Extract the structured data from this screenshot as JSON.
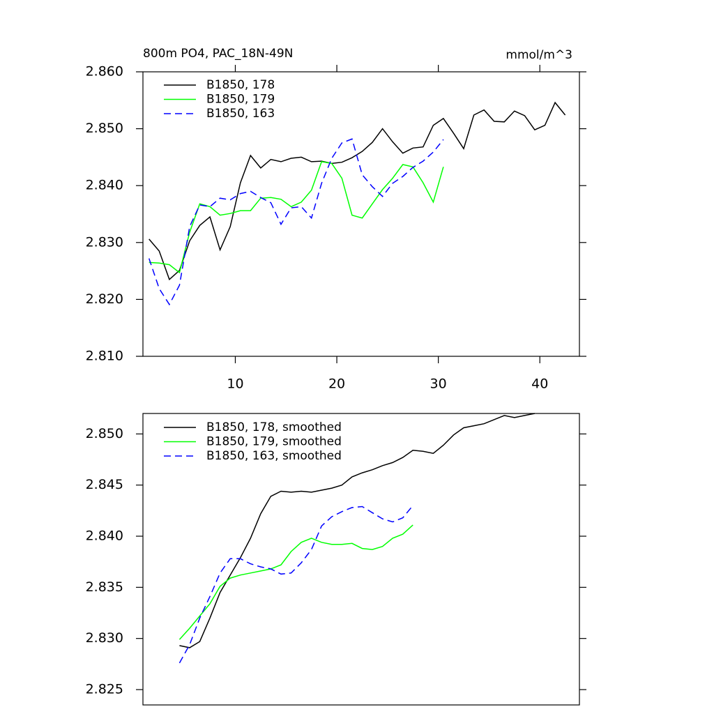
{
  "chart_data": [
    {
      "type": "line",
      "title": "800m PO4, PAC_18N-49N",
      "units": "mmol/m^3",
      "x": [
        1.5,
        2.5,
        3.5,
        4.5,
        5.5,
        6.5,
        7.5,
        8.5,
        9.5,
        10.5,
        11.5,
        12.5,
        13.5,
        14.5,
        15.5,
        16.5,
        17.5,
        18.5,
        19.5,
        20.5,
        21.5,
        22.5,
        23.5,
        24.5,
        25.5,
        26.5,
        27.5,
        28.5,
        29.5,
        30.5,
        31.5,
        32.5,
        33.5,
        34.5,
        35.5,
        36.5,
        37.5,
        38.5,
        39.5,
        40.5,
        41.5,
        42.5
      ],
      "series": [
        {
          "name": "B1850, 178",
          "color": "#000000",
          "line_style": "solid",
          "values": [
            2.8306,
            2.8285,
            2.8235,
            2.8251,
            2.8303,
            2.833,
            2.8345,
            2.8287,
            2.8328,
            2.8405,
            2.8453,
            2.8431,
            2.8446,
            2.8442,
            2.8448,
            2.845,
            2.8442,
            2.8443,
            2.8439,
            2.8441,
            2.8449,
            2.846,
            2.8476,
            2.85,
            2.8477,
            2.8457,
            2.8466,
            2.8468,
            2.8506,
            2.8518,
            2.8492,
            2.8465,
            2.8524,
            2.8533,
            2.8513,
            2.8512,
            2.8531,
            2.8523,
            2.8498,
            2.8506,
            2.8546,
            2.8524
          ]
        },
        {
          "name": "B1850, 179",
          "color": "#00ff00",
          "line_style": "solid",
          "values": [
            2.8265,
            2.8264,
            2.8261,
            2.8247,
            2.8318,
            2.8368,
            2.8363,
            2.8348,
            2.8351,
            2.8356,
            2.8356,
            2.8378,
            2.8379,
            2.8376,
            2.8363,
            2.8371,
            2.8392,
            2.8442,
            2.8439,
            2.8413,
            2.8348,
            2.8343,
            2.8368,
            2.8393,
            2.8413,
            2.8437,
            2.8433,
            2.8405,
            2.8371,
            2.8433,
            null,
            null,
            null,
            null,
            null,
            null,
            null,
            null,
            null,
            null,
            null,
            null
          ]
        },
        {
          "name": "B1850, 163",
          "color": "#0000ff",
          "line_style": "dashed",
          "values": [
            2.8272,
            2.8219,
            2.8191,
            2.8225,
            2.8328,
            2.8366,
            2.8363,
            2.8378,
            2.8375,
            2.8386,
            2.839,
            2.8379,
            2.837,
            2.8332,
            2.8361,
            2.8363,
            2.8343,
            2.8404,
            2.8448,
            2.8475,
            2.8482,
            2.8419,
            2.8398,
            2.8381,
            2.8404,
            2.8416,
            2.8432,
            2.8443,
            2.8459,
            2.8481,
            null,
            null,
            null,
            null,
            null,
            null,
            null,
            null,
            null,
            null,
            null,
            null
          ]
        }
      ],
      "xlim": [
        0.9,
        43.9
      ],
      "xticks": [
        10,
        20,
        30,
        40
      ],
      "ylim": [
        2.81,
        2.86
      ],
      "yticks": [
        {
          "value": 2.81,
          "label": "2.810"
        },
        {
          "value": 2.82,
          "label": "2.820"
        },
        {
          "value": 2.83,
          "label": "2.830"
        },
        {
          "value": 2.84,
          "label": "2.840"
        },
        {
          "value": 2.85,
          "label": "2.850"
        },
        {
          "value": 2.86,
          "label": "2.860"
        }
      ],
      "legend": "upper left"
    },
    {
      "type": "line",
      "x": [
        4.5,
        5.5,
        6.5,
        7.5,
        8.5,
        9.5,
        10.5,
        11.5,
        12.5,
        13.5,
        14.5,
        15.5,
        16.5,
        17.5,
        18.5,
        19.5,
        20.5,
        21.5,
        22.5,
        23.5,
        24.5,
        25.5,
        26.5,
        27.5,
        28.5,
        29.5,
        30.5,
        31.5,
        32.5,
        33.5,
        34.5,
        35.5,
        36.5,
        37.5,
        38.5,
        39.5
      ],
      "series": [
        {
          "name": "B1850, 178, smoothed",
          "color": "#000000",
          "line_style": "solid",
          "values": [
            2.8293,
            2.8291,
            2.8297,
            2.832,
            2.8345,
            2.8362,
            2.8379,
            2.8398,
            2.8422,
            2.8439,
            2.8444,
            2.8443,
            2.8444,
            2.8443,
            2.8445,
            2.8447,
            2.845,
            2.8458,
            2.8462,
            2.8465,
            2.8469,
            2.8472,
            2.8477,
            2.8484,
            2.8483,
            2.8481,
            2.8489,
            2.8499,
            2.8506,
            2.8508,
            2.851,
            2.8514,
            2.8518,
            2.8516,
            2.8518,
            2.852
          ]
        },
        {
          "name": "B1850, 179, smoothed",
          "color": "#00ff00",
          "line_style": "solid",
          "values": [
            2.8299,
            2.831,
            2.8322,
            2.8334,
            2.8351,
            2.8359,
            2.8362,
            2.8364,
            2.8366,
            2.8368,
            2.8372,
            2.8385,
            2.8394,
            2.8398,
            2.8394,
            2.8392,
            2.8392,
            2.8393,
            2.8388,
            2.8387,
            2.839,
            2.8398,
            2.8402,
            2.8411,
            null,
            null,
            null,
            null,
            null,
            null,
            null,
            null,
            null,
            null,
            null,
            null
          ]
        },
        {
          "name": "B1850, 163, smoothed",
          "color": "#0000ff",
          "line_style": "dashed",
          "values": [
            2.8276,
            2.8294,
            2.832,
            2.8341,
            2.8364,
            2.8378,
            2.8378,
            2.8373,
            2.837,
            2.8368,
            2.8363,
            2.8364,
            2.8374,
            2.8387,
            2.841,
            2.8419,
            2.8424,
            2.8428,
            2.8429,
            2.8423,
            2.8417,
            2.8414,
            2.8418,
            2.843,
            null,
            null,
            null,
            null,
            null,
            null,
            null,
            null,
            null,
            null,
            null,
            null
          ]
        }
      ],
      "xlim": [
        0.9,
        43.9
      ],
      "ylim": [
        2.8235,
        2.852
      ],
      "yticks": [
        2.825,
        {
          "value": 2.83,
          "label": "2.830"
        },
        2.835,
        {
          "value": 2.84,
          "label": "2.840"
        },
        2.845,
        {
          "value": 2.85,
          "label": "2.850"
        }
      ],
      "legend": "upper left"
    }
  ]
}
